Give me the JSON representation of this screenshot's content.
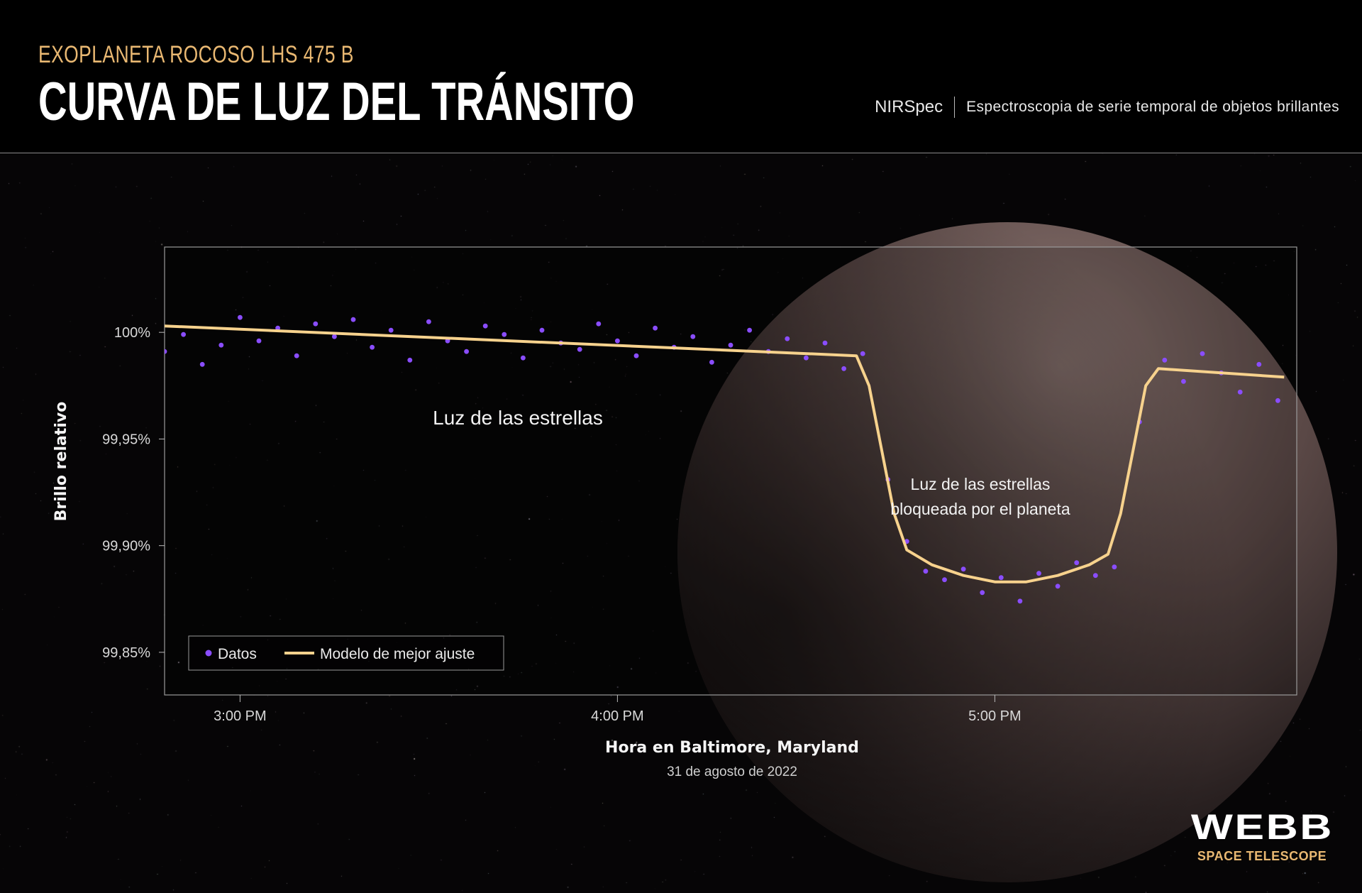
{
  "header": {
    "kicker": "EXOPLANETA ROCOSO LHS 475 B",
    "title": "CURVA DE LUZ DEL TRÁNSITO",
    "instrument": "NIRSpec",
    "mode": "Espectroscopia de serie temporal de objetos brillantes"
  },
  "logo": {
    "line1": "WEBB",
    "line2": "SPACE TELESCOPE"
  },
  "colors": {
    "data": "#8a4dff",
    "model": "#f7d28d",
    "accent": "#e9b872"
  },
  "chart_data": {
    "type": "scatter",
    "xlabel": "Hora en Baltimore, Maryland",
    "xsublabel": "31 de agosto de 2022",
    "ylabel": "Brillo relativo",
    "xlim": [
      "14:48",
      "17:48"
    ],
    "ylim": [
      99.83,
      100.04
    ],
    "x_ticks": [
      {
        "time": "15:00",
        "label": "3:00 PM"
      },
      {
        "time": "16:00",
        "label": "4:00 PM"
      },
      {
        "time": "17:00",
        "label": "5:00 PM"
      }
    ],
    "y_ticks": [
      {
        "value": 100.0,
        "label": "100%"
      },
      {
        "value": 99.95,
        "label": "99,95%"
      },
      {
        "value": 99.9,
        "label": "99,90%"
      },
      {
        "value": 99.85,
        "label": "99,85%"
      }
    ],
    "legend": {
      "position": "bottom-left",
      "entries": [
        "Datos",
        "Modelo de mejor ajuste"
      ]
    },
    "annotations": [
      {
        "text": "Luz de las estrellas"
      },
      {
        "text": "Luz de las estrellas",
        "text2": "bloqueada por el planeta"
      }
    ],
    "series": [
      {
        "name": "Modelo de mejor ajuste",
        "style": "line",
        "points": [
          [
            "14:48",
            100.003
          ],
          [
            "16:38",
            99.989
          ],
          [
            "16:40",
            99.975
          ],
          [
            "16:42",
            99.945
          ],
          [
            "16:44",
            99.915
          ],
          [
            "16:46",
            99.898
          ],
          [
            "16:50",
            99.891
          ],
          [
            "16:55",
            99.886
          ],
          [
            "17:00",
            99.883
          ],
          [
            "17:05",
            99.883
          ],
          [
            "17:10",
            99.886
          ],
          [
            "17:15",
            99.891
          ],
          [
            "17:18",
            99.896
          ],
          [
            "17:20",
            99.915
          ],
          [
            "17:22",
            99.945
          ],
          [
            "17:24",
            99.975
          ],
          [
            "17:26",
            99.983
          ],
          [
            "17:46",
            99.979
          ]
        ]
      },
      {
        "name": "Datos",
        "style": "scatter",
        "points": [
          [
            "14:48",
            99.991
          ],
          [
            "14:51",
            99.999
          ],
          [
            "14:54",
            99.985
          ],
          [
            "14:57",
            99.994
          ],
          [
            "15:00",
            100.007
          ],
          [
            "15:03",
            99.996
          ],
          [
            "15:06",
            100.002
          ],
          [
            "15:09",
            99.989
          ],
          [
            "15:12",
            100.004
          ],
          [
            "15:15",
            99.998
          ],
          [
            "15:18",
            100.006
          ],
          [
            "15:21",
            99.993
          ],
          [
            "15:24",
            100.001
          ],
          [
            "15:27",
            99.987
          ],
          [
            "15:30",
            100.005
          ],
          [
            "15:33",
            99.996
          ],
          [
            "15:36",
            99.991
          ],
          [
            "15:39",
            100.003
          ],
          [
            "15:42",
            99.999
          ],
          [
            "15:45",
            99.988
          ],
          [
            "15:48",
            100.001
          ],
          [
            "15:51",
            99.995
          ],
          [
            "15:54",
            99.992
          ],
          [
            "15:57",
            100.004
          ],
          [
            "16:00",
            99.996
          ],
          [
            "16:03",
            99.989
          ],
          [
            "16:06",
            100.002
          ],
          [
            "16:09",
            99.993
          ],
          [
            "16:12",
            99.998
          ],
          [
            "16:15",
            99.986
          ],
          [
            "16:18",
            99.994
          ],
          [
            "16:21",
            100.001
          ],
          [
            "16:24",
            99.991
          ],
          [
            "16:27",
            99.997
          ],
          [
            "16:30",
            99.988
          ],
          [
            "16:33",
            99.995
          ],
          [
            "16:36",
            99.983
          ],
          [
            "16:39",
            99.99
          ],
          [
            "16:43",
            99.931
          ],
          [
            "16:46",
            99.902
          ],
          [
            "16:49",
            99.888
          ],
          [
            "16:52",
            99.884
          ],
          [
            "16:55",
            99.889
          ],
          [
            "16:58",
            99.878
          ],
          [
            "17:01",
            99.885
          ],
          [
            "17:04",
            99.874
          ],
          [
            "17:07",
            99.887
          ],
          [
            "17:10",
            99.881
          ],
          [
            "17:13",
            99.892
          ],
          [
            "17:16",
            99.886
          ],
          [
            "17:19",
            99.89
          ],
          [
            "17:23",
            99.958
          ],
          [
            "17:27",
            99.987
          ],
          [
            "17:30",
            99.977
          ],
          [
            "17:33",
            99.99
          ],
          [
            "17:36",
            99.981
          ],
          [
            "17:39",
            99.972
          ],
          [
            "17:42",
            99.985
          ],
          [
            "17:45",
            99.968
          ]
        ]
      }
    ]
  }
}
